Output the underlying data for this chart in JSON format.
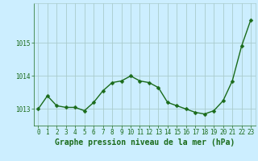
{
  "x": [
    0,
    1,
    2,
    3,
    4,
    5,
    6,
    7,
    8,
    9,
    10,
    11,
    12,
    13,
    14,
    15,
    16,
    17,
    18,
    19,
    20,
    21,
    22,
    23
  ],
  "y": [
    1013.0,
    1013.4,
    1013.1,
    1013.05,
    1013.05,
    1012.95,
    1013.2,
    1013.55,
    1013.8,
    1013.85,
    1014.0,
    1013.85,
    1013.8,
    1013.65,
    1013.2,
    1013.1,
    1013.0,
    1012.9,
    1012.85,
    1012.95,
    1013.25,
    1013.85,
    1014.9,
    1015.7
  ],
  "line_color": "#1a6b1a",
  "marker": "D",
  "marker_size": 2.5,
  "line_width": 1.0,
  "background_color": "#cceeff",
  "grid_color": "#aacccc",
  "xlabel": "Graphe pression niveau de la mer (hPa)",
  "xlabel_color": "#1a6b1a",
  "xlabel_fontsize": 7.0,
  "tick_color": "#1a6b1a",
  "tick_fontsize": 5.5,
  "yticks": [
    1013,
    1014,
    1015
  ],
  "ylim": [
    1012.5,
    1016.2
  ],
  "xlim": [
    -0.5,
    23.5
  ],
  "xticks": [
    0,
    1,
    2,
    3,
    4,
    5,
    6,
    7,
    8,
    9,
    10,
    11,
    12,
    13,
    14,
    15,
    16,
    17,
    18,
    19,
    20,
    21,
    22,
    23
  ]
}
